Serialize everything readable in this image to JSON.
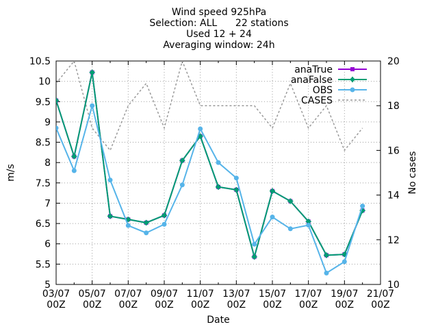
{
  "chart_data": {
    "type": "line",
    "title_lines": [
      "Wind speed 925hPa",
      "Selection: ALL      22 stations",
      "Used 12 + 24",
      "Averaging window: 24h"
    ],
    "xlabel": "Date",
    "ylabel": "m/s",
    "y2label": "No cases",
    "x": [
      "03/07 00Z",
      "04/07 00Z",
      "05/07 00Z",
      "06/07 00Z",
      "07/07 00Z",
      "08/07 00Z",
      "09/07 00Z",
      "10/07 00Z",
      "11/07 00Z",
      "12/07 00Z",
      "13/07 00Z",
      "14/07 00Z",
      "15/07 00Z",
      "16/07 00Z",
      "17/07 00Z",
      "18/07 00Z",
      "19/07 00Z",
      "20/07 00Z"
    ],
    "x_ticks": [
      "03/07",
      "05/07",
      "07/07",
      "09/07",
      "11/07",
      "13/07",
      "15/07",
      "17/07",
      "19/07",
      "21/07"
    ],
    "x_tick_sub": "00Z",
    "ylim": [
      5,
      10.5
    ],
    "y_ticks": [
      5,
      5.5,
      6,
      6.5,
      7,
      7.5,
      8,
      8.5,
      9,
      9.5,
      10,
      10.5
    ],
    "y_tick_labels": [
      "5",
      "5.5",
      "6",
      "6.5",
      "7",
      "7.5",
      "8",
      "8.5",
      "9",
      "9.5",
      "10",
      "10.5"
    ],
    "y2lim": [
      10,
      20
    ],
    "y2_ticks": [
      10,
      12,
      14,
      16,
      18,
      20
    ],
    "y2_tick_labels": [
      "10",
      "12",
      "14",
      "16",
      "18",
      "20"
    ],
    "legend_position": "top-right",
    "series": [
      {
        "name": "anaTrue",
        "axis": "y",
        "color": "#9400d3",
        "values": [
          9.53,
          8.15,
          10.22,
          6.68,
          6.6,
          6.52,
          6.7,
          8.05,
          8.65,
          7.4,
          7.33,
          5.68,
          7.3,
          7.05,
          6.55,
          5.72,
          5.74,
          6.82
        ]
      },
      {
        "name": "anaFalse",
        "axis": "y",
        "color": "#009e73",
        "values": [
          9.53,
          8.15,
          10.22,
          6.68,
          6.6,
          6.52,
          6.7,
          8.05,
          8.65,
          7.4,
          7.33,
          5.68,
          7.3,
          7.05,
          6.55,
          5.72,
          5.74,
          6.82
        ]
      },
      {
        "name": "OBS",
        "axis": "y",
        "color": "#56b4e9",
        "values": [
          8.85,
          7.8,
          9.4,
          7.57,
          6.45,
          6.27,
          6.48,
          7.45,
          8.83,
          8.0,
          7.62,
          5.99,
          6.66,
          6.37,
          6.46,
          5.28,
          5.56,
          6.93
        ]
      },
      {
        "name": "CASES",
        "axis": "y2",
        "color": "#999999",
        "values": [
          19,
          20,
          17,
          16,
          18,
          19,
          17,
          20,
          18,
          18,
          18,
          18,
          17,
          19,
          17,
          18,
          16,
          17
        ]
      }
    ]
  }
}
